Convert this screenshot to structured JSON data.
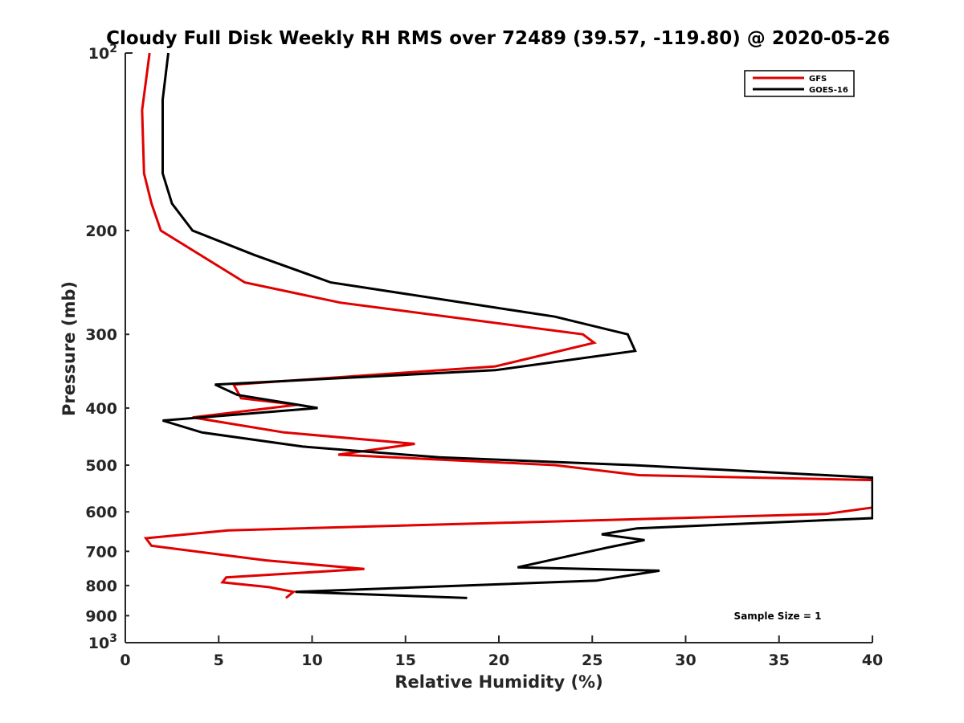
{
  "chart_data": {
    "type": "line",
    "title": "Cloudy Full Disk Weekly RH RMS over 72489 (39.57, -119.80) @ 2020-05-26",
    "xlabel": "Relative Humidity (%)",
    "ylabel": "Pressure (mb)",
    "xlim": [
      0,
      40
    ],
    "ylim": [
      100,
      1000
    ],
    "y_scale": "log",
    "y_reversed": true,
    "x_ticks": [
      "0",
      "5",
      "10",
      "15",
      "20",
      "25",
      "30",
      "35",
      "40"
    ],
    "y_ticks": [
      {
        "value": 100,
        "base": "10",
        "exp": "2"
      },
      {
        "value": 200,
        "label": "200"
      },
      {
        "value": 300,
        "label": "300"
      },
      {
        "value": 400,
        "label": "400"
      },
      {
        "value": 500,
        "label": "500"
      },
      {
        "value": 600,
        "label": "600"
      },
      {
        "value": 700,
        "label": "700"
      },
      {
        "value": 800,
        "label": "800"
      },
      {
        "value": 900,
        "label": "900"
      },
      {
        "value": 1000,
        "base": "10",
        "exp": "3"
      }
    ],
    "grid": false,
    "legend_position": "top-right",
    "annotation": "Sample Size = 1",
    "series": [
      {
        "name": "GFS",
        "color": "#e00000",
        "points": [
          [
            1.3,
            100
          ],
          [
            0.9,
            125
          ],
          [
            1.0,
            160
          ],
          [
            1.4,
            180
          ],
          [
            1.9,
            200
          ],
          [
            6.4,
            245
          ],
          [
            11.5,
            265
          ],
          [
            24.5,
            300
          ],
          [
            25.1,
            310
          ],
          [
            19.8,
            340
          ],
          [
            5.8,
            365
          ],
          [
            6.2,
            385
          ],
          [
            9.2,
            395
          ],
          [
            3.6,
            415
          ],
          [
            8.5,
            440
          ],
          [
            15.5,
            460
          ],
          [
            11.4,
            480
          ],
          [
            23.0,
            500
          ],
          [
            27.5,
            520
          ],
          [
            40.0,
            530
          ],
          [
            40.0,
            590
          ],
          [
            37.5,
            605
          ],
          [
            5.5,
            645
          ],
          [
            1.1,
            665
          ],
          [
            1.4,
            685
          ],
          [
            7.5,
            725
          ],
          [
            12.8,
            750
          ],
          [
            5.4,
            775
          ],
          [
            5.2,
            790
          ],
          [
            7.7,
            805
          ],
          [
            9.0,
            820
          ],
          [
            8.6,
            840
          ]
        ]
      },
      {
        "name": "GOES-16",
        "color": "#000000",
        "points": [
          [
            2.3,
            100
          ],
          [
            2.0,
            120
          ],
          [
            2.0,
            160
          ],
          [
            2.5,
            180
          ],
          [
            3.6,
            200
          ],
          [
            6.9,
            220
          ],
          [
            11.0,
            245
          ],
          [
            23.0,
            280
          ],
          [
            26.9,
            300
          ],
          [
            27.3,
            320
          ],
          [
            19.8,
            345
          ],
          [
            4.8,
            365
          ],
          [
            6.0,
            380
          ],
          [
            10.3,
            400
          ],
          [
            2.0,
            420
          ],
          [
            4.1,
            440
          ],
          [
            9.5,
            465
          ],
          [
            16.8,
            485
          ],
          [
            27.2,
            500
          ],
          [
            35.0,
            515
          ],
          [
            40.0,
            525
          ],
          [
            40.0,
            615
          ],
          [
            27.4,
            640
          ],
          [
            25.5,
            655
          ],
          [
            27.8,
            670
          ],
          [
            25.8,
            690
          ],
          [
            21.0,
            745
          ],
          [
            28.6,
            755
          ],
          [
            25.2,
            785
          ],
          [
            9.1,
            820
          ],
          [
            18.3,
            840
          ]
        ]
      }
    ]
  }
}
